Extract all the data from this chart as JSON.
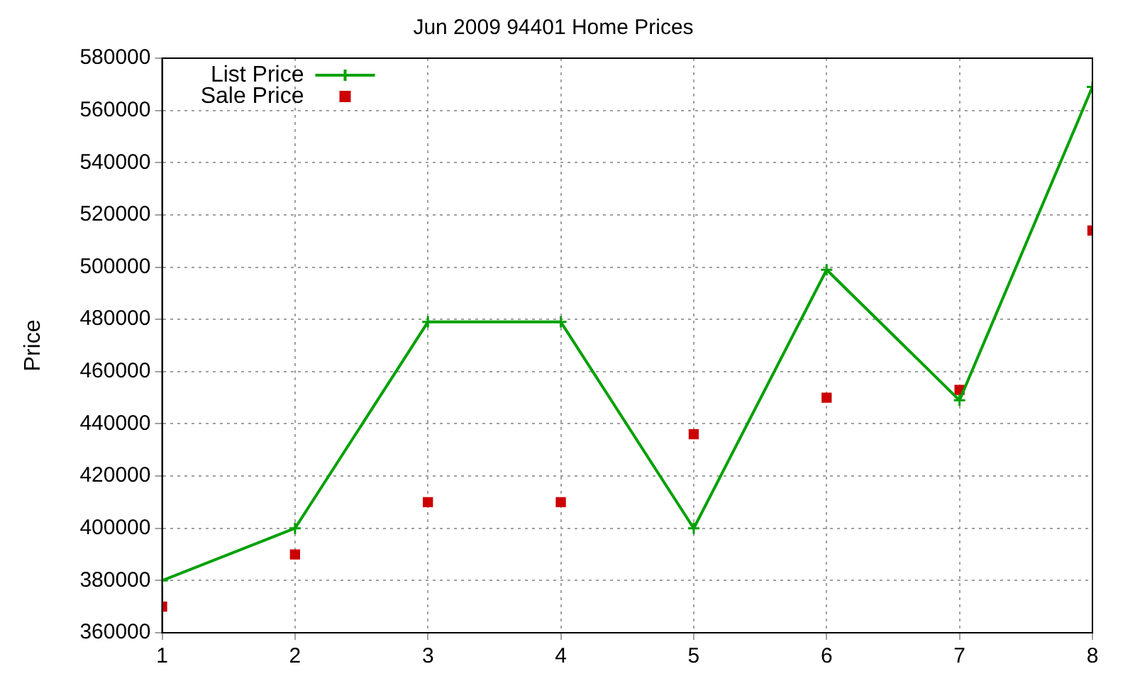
{
  "chart_data": {
    "type": "line",
    "title": "Jun 2009 94401 Home Prices",
    "ylabel": "Price",
    "x": [
      1,
      2,
      3,
      4,
      5,
      6,
      7,
      8
    ],
    "xlim": [
      1,
      8
    ],
    "xticks": [
      1,
      2,
      3,
      4,
      5,
      6,
      7,
      8
    ],
    "ylim": [
      360000,
      580000
    ],
    "yticks": [
      360000,
      380000,
      400000,
      420000,
      440000,
      460000,
      480000,
      500000,
      520000,
      540000,
      560000,
      580000
    ],
    "grid": true,
    "legend": "top left",
    "series": [
      {
        "name": "List Price",
        "color": "#00a000",
        "marker": "cross",
        "values": [
          380000,
          400000,
          479000,
          479000,
          400000,
          499000,
          449000,
          569000
        ]
      },
      {
        "name": "Sale Price",
        "type": "scatter",
        "color": "#cc0000",
        "marker": "square",
        "values": [
          370000,
          390000,
          410000,
          410000,
          436000,
          450000,
          453000,
          514000
        ]
      }
    ]
  }
}
